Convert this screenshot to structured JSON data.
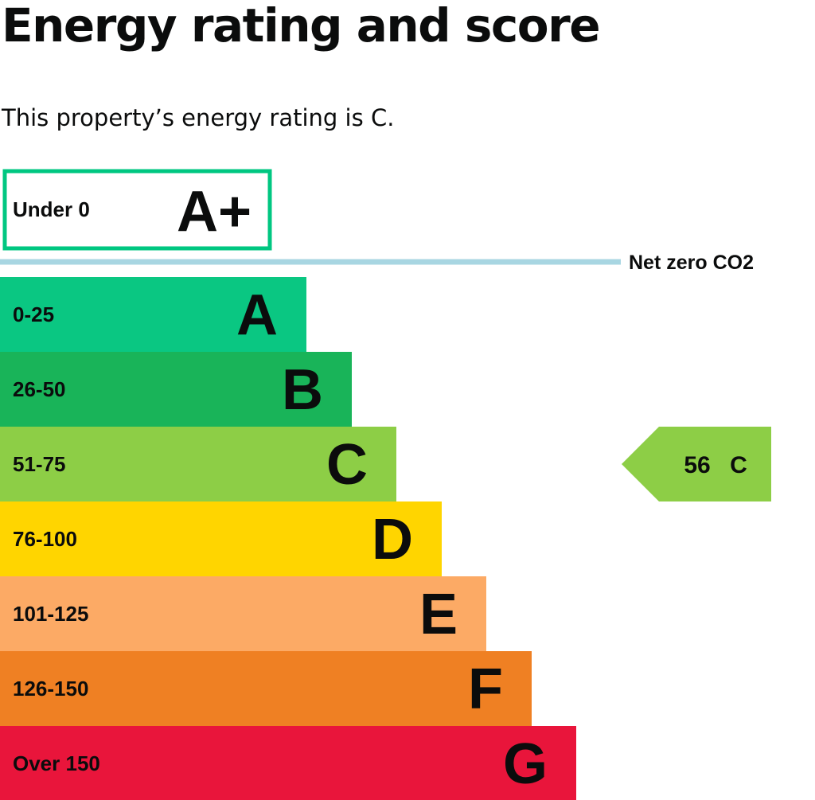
{
  "page": {
    "title": "Energy rating and score",
    "summary": "This property’s energy rating is C."
  },
  "chart_data": {
    "type": "bar",
    "aplus": {
      "range": "Under 0",
      "letter": "A+",
      "color": "#00c781"
    },
    "net_zero_label": "Net zero CO2",
    "net_zero_color": "#a8d6e2",
    "bands": [
      {
        "letter": "A",
        "range": "0-25",
        "max": 25,
        "color": "#0ac782"
      },
      {
        "letter": "B",
        "range": "26-50",
        "max": 50,
        "color": "#19b459"
      },
      {
        "letter": "C",
        "range": "51-75",
        "max": 75,
        "color": "#8dce46"
      },
      {
        "letter": "D",
        "range": "76-100",
        "max": 100,
        "color": "#ffd500"
      },
      {
        "letter": "E",
        "range": "101-125",
        "max": 125,
        "color": "#fcaa65"
      },
      {
        "letter": "F",
        "range": "126-150",
        "max": 150,
        "color": "#ef8023"
      },
      {
        "letter": "G",
        "range": "Over 150",
        "max": 175,
        "color": "#e9153b"
      }
    ],
    "current": {
      "score": "56",
      "band": "C",
      "color": "#8dce46"
    }
  }
}
